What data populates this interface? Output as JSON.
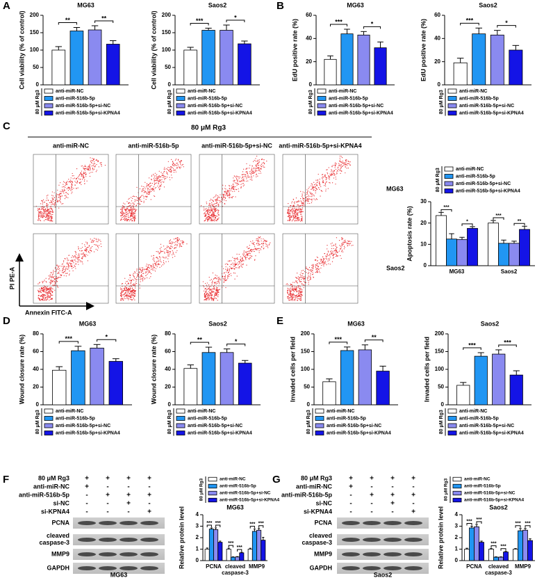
{
  "panel_labels": [
    "A",
    "B",
    "C",
    "D",
    "E",
    "F",
    "G"
  ],
  "flow": {
    "header": "80 μM Rg3",
    "columns": [
      "anti-miR-NC",
      "anti-miR-516b-5p",
      "anti-miR-516b-5p+si-NC",
      "anti-miR-516b-5p+si-KPNA4"
    ],
    "rows": [
      "MG63",
      "Saos2"
    ],
    "ylabel": "PI PE-A",
    "xlabel": "Annexin FITC-A"
  },
  "blots": [
    {
      "table": [
        {
          "label": "80 μM Rg3",
          "signs": [
            "+",
            "+",
            "+",
            "+"
          ]
        },
        {
          "label": "anti-miR-NC",
          "signs": [
            "+",
            "-",
            "-",
            "-"
          ]
        },
        {
          "label": "anti-miR-516b-5p",
          "signs": [
            "-",
            "+",
            "+",
            "+"
          ]
        },
        {
          "label": "si-NC",
          "signs": [
            "-",
            "-",
            "+",
            "-"
          ]
        },
        {
          "label": "si-KPNA4",
          "signs": [
            "-",
            "-",
            "-",
            "+"
          ]
        }
      ],
      "bands": [
        "PCNA",
        "cleaved\ncaspase-3",
        "MMP9",
        "GAPDH"
      ],
      "caption": "MG63"
    },
    {
      "table": [
        {
          "label": "80 μM Rg3",
          "signs": [
            "+",
            "+",
            "+",
            "+"
          ]
        },
        {
          "label": "anti-miR-NC",
          "signs": [
            "+",
            "-",
            "-",
            "-"
          ]
        },
        {
          "label": "anti-miR-516b-5p",
          "signs": [
            "-",
            "+",
            "+",
            "+"
          ]
        },
        {
          "label": "si-NC",
          "signs": [
            "-",
            "-",
            "+",
            "-"
          ]
        },
        {
          "label": "si-KPNA4",
          "signs": [
            "-",
            "-",
            "-",
            "+"
          ]
        }
      ],
      "bands": [
        "PCNA",
        "cleaved\ncaspase-3",
        "MMP9",
        "GAPDH"
      ],
      "caption": "Saos2"
    }
  ],
  "chart_data": [
    {
      "type": "bar",
      "title": "MG63",
      "ylabel": "Cell viability (% of control)",
      "legend_title": "80 μM Rg3",
      "ylim": [
        0,
        200
      ],
      "yticks": [
        0,
        50,
        100,
        150,
        200
      ],
      "series": [
        {
          "name": "anti-miR-NC",
          "color": "#ffffff",
          "values": [
            100
          ],
          "errors": [
            10
          ]
        },
        {
          "name": "anti-miR-516b-5p",
          "color": "#2196f3",
          "values": [
            155
          ],
          "errors": [
            10
          ]
        },
        {
          "name": "anti-miR-516b-5p+si-NC",
          "color": "#8a8af0",
          "values": [
            158
          ],
          "errors": [
            12
          ]
        },
        {
          "name": "anti-miR-516b-5p+si-KPNA4",
          "color": "#1414e6",
          "values": [
            117
          ],
          "errors": [
            10
          ]
        }
      ],
      "annotations": [
        {
          "text": "**",
          "group": 0,
          "from": 0,
          "to": 1
        },
        {
          "text": "**",
          "group": 0,
          "from": 2,
          "to": 3
        }
      ]
    },
    {
      "type": "bar",
      "title": "Saos2",
      "ylabel": "Cell viability (% of control)",
      "legend_title": "80 μM Rg3",
      "ylim": [
        0,
        200
      ],
      "yticks": [
        0,
        50,
        100,
        150,
        200
      ],
      "series": [
        {
          "name": "anti-miR-NC",
          "color": "#ffffff",
          "values": [
            100
          ],
          "errors": [
            8
          ]
        },
        {
          "name": "anti-miR-516b-5p",
          "color": "#2196f3",
          "values": [
            157
          ],
          "errors": [
            6
          ]
        },
        {
          "name": "anti-miR-516b-5p+si-NC",
          "color": "#8a8af0",
          "values": [
            157
          ],
          "errors": [
            15
          ]
        },
        {
          "name": "anti-miR-516b-5p+si-KPNA4",
          "color": "#1414e6",
          "values": [
            118
          ],
          "errors": [
            8
          ]
        }
      ],
      "annotations": [
        {
          "text": "***",
          "group": 0,
          "from": 0,
          "to": 1
        },
        {
          "text": "*",
          "group": 0,
          "from": 2,
          "to": 3
        }
      ]
    },
    {
      "type": "bar",
      "title": "MG63",
      "ylabel": "EdU positive rate (%)",
      "legend_title": "80 μM Rg3",
      "ylim": [
        0,
        60
      ],
      "yticks": [
        0,
        20,
        40,
        60
      ],
      "series": [
        {
          "name": "anti-miR-NC",
          "color": "#ffffff",
          "values": [
            22
          ],
          "errors": [
            3
          ]
        },
        {
          "name": "anti-miR-516b-5p",
          "color": "#2196f3",
          "values": [
            44
          ],
          "errors": [
            4
          ]
        },
        {
          "name": "anti-miR-516b-5p+si-NC",
          "color": "#8a8af0",
          "values": [
            43
          ],
          "errors": [
            3
          ]
        },
        {
          "name": "anti-miR-516b-5p+si-KPNA4",
          "color": "#1414e6",
          "values": [
            32
          ],
          "errors": [
            5
          ]
        }
      ],
      "annotations": [
        {
          "text": "***",
          "group": 0,
          "from": 0,
          "to": 1
        },
        {
          "text": "*",
          "group": 0,
          "from": 2,
          "to": 3
        }
      ]
    },
    {
      "type": "bar",
      "title": "Saos2",
      "ylabel": "EdU positive rate (%)",
      "legend_title": "80 μM Rg3",
      "ylim": [
        0,
        60
      ],
      "yticks": [
        0,
        20,
        40,
        60
      ],
      "series": [
        {
          "name": "anti-miR-NC",
          "color": "#ffffff",
          "values": [
            19
          ],
          "errors": [
            4
          ]
        },
        {
          "name": "anti-miR-516b-5p",
          "color": "#2196f3",
          "values": [
            44
          ],
          "errors": [
            5
          ]
        },
        {
          "name": "anti-miR-516b-5p+si-NC",
          "color": "#8a8af0",
          "values": [
            43
          ],
          "errors": [
            4
          ]
        },
        {
          "name": "anti-miR-516b-5p+si-KPNA4",
          "color": "#1414e6",
          "values": [
            30
          ],
          "errors": [
            4
          ]
        }
      ],
      "annotations": [
        {
          "text": "***",
          "group": 0,
          "from": 0,
          "to": 1
        },
        {
          "text": "*",
          "group": 0,
          "from": 2,
          "to": 3
        }
      ]
    },
    {
      "type": "bar",
      "ylabel": "Apoptosis rate (%)",
      "legend_title": "80 μM Rg3",
      "categories": [
        "MG63",
        "Saos2"
      ],
      "ylim": [
        0,
        30
      ],
      "yticks": [
        0,
        10,
        20,
        30
      ],
      "series": [
        {
          "name": "anti-miR-NC",
          "color": "#ffffff",
          "values": [
            23.5,
            20
          ],
          "errors": [
            1.5,
            1.2
          ]
        },
        {
          "name": "anti-miR-516b-5p",
          "color": "#2196f3",
          "values": [
            12.5,
            10.5
          ],
          "errors": [
            2.5,
            1.5
          ]
        },
        {
          "name": "anti-miR-516b-5p+si-NC",
          "color": "#8a8af0",
          "values": [
            12.3,
            10.5
          ],
          "errors": [
            1,
            1
          ]
        },
        {
          "name": "anti-miR-516b-5p+si-KPNA4",
          "color": "#1414e6",
          "values": [
            17.5,
            17
          ],
          "errors": [
            0.8,
            1.5
          ]
        }
      ],
      "annotations": [
        {
          "text": "***",
          "group": 0,
          "from": 0,
          "to": 1
        },
        {
          "text": "*",
          "group": 0,
          "from": 2,
          "to": 3
        },
        {
          "text": "***",
          "group": 1,
          "from": 0,
          "to": 1
        },
        {
          "text": "**",
          "group": 1,
          "from": 2,
          "to": 3
        }
      ]
    },
    {
      "type": "bar",
      "title": "MG63",
      "ylabel": "Wound closure rate (%)",
      "legend_title": "80 μM Rg3",
      "ylim": [
        0,
        80
      ],
      "yticks": [
        0,
        20,
        40,
        60,
        80
      ],
      "series": [
        {
          "name": "anti-miR-NC",
          "color": "#ffffff",
          "values": [
            39
          ],
          "errors": [
            4
          ]
        },
        {
          "name": "anti-miR-516b-5p",
          "color": "#2196f3",
          "values": [
            61
          ],
          "errors": [
            5
          ]
        },
        {
          "name": "anti-miR-516b-5p+si-NC",
          "color": "#8a8af0",
          "values": [
            64
          ],
          "errors": [
            4
          ]
        },
        {
          "name": "anti-miR-516b-5p+si-KPNA4",
          "color": "#1414e6",
          "values": [
            49
          ],
          "errors": [
            3
          ]
        }
      ],
      "annotations": [
        {
          "text": "***",
          "group": 0,
          "from": 0,
          "to": 1
        },
        {
          "text": "*",
          "group": 0,
          "from": 2,
          "to": 3
        }
      ]
    },
    {
      "type": "bar",
      "title": "Saos2",
      "ylabel": "Wound closure rate (%)",
      "legend_title": "80 μM Rg3",
      "ylim": [
        0,
        80
      ],
      "yticks": [
        0,
        20,
        40,
        60,
        80
      ],
      "series": [
        {
          "name": "anti-miR-NC",
          "color": "#ffffff",
          "values": [
            41
          ],
          "errors": [
            4
          ]
        },
        {
          "name": "anti-miR-516b-5p",
          "color": "#2196f3",
          "values": [
            59
          ],
          "errors": [
            6
          ]
        },
        {
          "name": "anti-miR-516b-5p+si-NC",
          "color": "#8a8af0",
          "values": [
            59
          ],
          "errors": [
            4
          ]
        },
        {
          "name": "anti-miR-516b-5p+si-KPNA4",
          "color": "#1414e6",
          "values": [
            47
          ],
          "errors": [
            3
          ]
        }
      ],
      "annotations": [
        {
          "text": "**",
          "group": 0,
          "from": 0,
          "to": 1
        },
        {
          "text": "*",
          "group": 0,
          "from": 2,
          "to": 3
        }
      ]
    },
    {
      "type": "bar",
      "title": "MG63",
      "ylabel": "Invaded cells per field",
      "legend_title": "80 μM Rg3",
      "ylim": [
        0,
        200
      ],
      "yticks": [
        0,
        50,
        100,
        150,
        200
      ],
      "series": [
        {
          "name": "anti-miR-NC",
          "color": "#ffffff",
          "values": [
            65
          ],
          "errors": [
            8
          ]
        },
        {
          "name": "anti-miR-516b-5p",
          "color": "#2196f3",
          "values": [
            153
          ],
          "errors": [
            10
          ]
        },
        {
          "name": "anti-miR-516b-5p+si-NC",
          "color": "#8a8af0",
          "values": [
            155
          ],
          "errors": [
            14
          ]
        },
        {
          "name": "anti-miR-516b-5p+si-KPNA4",
          "color": "#1414e6",
          "values": [
            95
          ],
          "errors": [
            14
          ]
        }
      ],
      "annotations": [
        {
          "text": "***",
          "group": 0,
          "from": 0,
          "to": 1
        },
        {
          "text": "**",
          "group": 0,
          "from": 2,
          "to": 3
        }
      ]
    },
    {
      "type": "bar",
      "title": "Saos2",
      "ylabel": "Invaded cells per field",
      "legend_title": "80 μM Rg3",
      "ylim": [
        0,
        200
      ],
      "yticks": [
        0,
        50,
        100,
        150,
        200
      ],
      "series": [
        {
          "name": "anti-miR-NC",
          "color": "#ffffff",
          "values": [
            55
          ],
          "errors": [
            8
          ]
        },
        {
          "name": "anti-miR-516b-5p",
          "color": "#2196f3",
          "values": [
            137
          ],
          "errors": [
            10
          ]
        },
        {
          "name": "anti-miR-516b-5p+si-NC",
          "color": "#8a8af0",
          "values": [
            143
          ],
          "errors": [
            12
          ]
        },
        {
          "name": "anti-miR-516b-5p+si-KPNA4",
          "color": "#1414e6",
          "values": [
            84
          ],
          "errors": [
            12
          ]
        }
      ],
      "annotations": [
        {
          "text": "***",
          "group": 0,
          "from": 0,
          "to": 1
        },
        {
          "text": "***",
          "group": 0,
          "from": 2,
          "to": 3
        }
      ]
    },
    {
      "type": "bar",
      "title": "MG63",
      "ylabel": "Relative protein level",
      "legend_title": "80 μM Rg3",
      "categories": [
        "PCNA",
        "cleaved\ncaspase-3",
        "MMP9"
      ],
      "ylim": [
        0,
        4
      ],
      "yticks": [
        0,
        1,
        2,
        3,
        4
      ],
      "series": [
        {
          "name": "anti-miR-NC",
          "color": "#ffffff",
          "values": [
            1,
            1,
            1
          ],
          "errors": [
            0.1,
            0.08,
            0.08
          ]
        },
        {
          "name": "anti-miR-516b-5p",
          "color": "#2196f3",
          "values": [
            2.75,
            0.3,
            2.55
          ],
          "errors": [
            0.1,
            0.03,
            0.2
          ]
        },
        {
          "name": "anti-miR-516b-5p+si-NC",
          "color": "#8a8af0",
          "values": [
            2.7,
            0.32,
            2.65
          ],
          "errors": [
            0.15,
            0.03,
            0.15
          ]
        },
        {
          "name": "anti-miR-516b-5p+si-KPNA4",
          "color": "#1414e6",
          "values": [
            1.6,
            0.68,
            1.78
          ],
          "errors": [
            0.1,
            0.05,
            0.25
          ]
        }
      ],
      "annotations": [
        {
          "text": "***",
          "group": 0,
          "from": 0,
          "to": 1
        },
        {
          "text": "***",
          "group": 0,
          "from": 2,
          "to": 3
        },
        {
          "text": "***",
          "group": 1,
          "from": 0,
          "to": 1
        },
        {
          "text": "***",
          "group": 1,
          "from": 2,
          "to": 3
        },
        {
          "text": "***",
          "group": 2,
          "from": 0,
          "to": 1
        },
        {
          "text": "***",
          "group": 2,
          "from": 2,
          "to": 3
        }
      ]
    },
    {
      "type": "bar",
      "title": "Saos2",
      "ylabel": "Relative protein level",
      "legend_title": "80 μM Rg3",
      "categories": [
        "PCNA",
        "cleaved\ncaspase-3",
        "MMP9"
      ],
      "ylim": [
        0,
        4
      ],
      "yticks": [
        0,
        1,
        2,
        3,
        4
      ],
      "series": [
        {
          "name": "anti-miR-NC",
          "color": "#ffffff",
          "values": [
            1,
            1,
            1
          ],
          "errors": [
            0.08,
            0.05,
            0.05
          ]
        },
        {
          "name": "anti-miR-516b-5p",
          "color": "#2196f3",
          "values": [
            2.85,
            0.3,
            2.6
          ],
          "errors": [
            0.15,
            0.03,
            0.2
          ]
        },
        {
          "name": "anti-miR-516b-5p+si-NC",
          "color": "#8a8af0",
          "values": [
            2.95,
            0.3,
            2.65
          ],
          "errors": [
            0.2,
            0.03,
            0.15
          ]
        },
        {
          "name": "anti-miR-516b-5p+si-KPNA4",
          "color": "#1414e6",
          "values": [
            1.6,
            0.75,
            1.75
          ],
          "errors": [
            0.1,
            0.05,
            0.15
          ]
        }
      ],
      "annotations": [
        {
          "text": "***",
          "group": 0,
          "from": 0,
          "to": 1
        },
        {
          "text": "***",
          "group": 0,
          "from": 2,
          "to": 3
        },
        {
          "text": "***",
          "group": 1,
          "from": 0,
          "to": 1
        },
        {
          "text": "***",
          "group": 1,
          "from": 2,
          "to": 3
        },
        {
          "text": "***",
          "group": 2,
          "from": 0,
          "to": 1
        },
        {
          "text": "***",
          "group": 2,
          "from": 2,
          "to": 3
        }
      ]
    }
  ]
}
